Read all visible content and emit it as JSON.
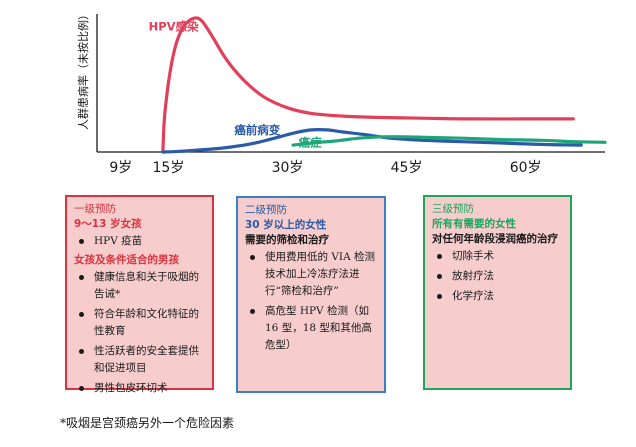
{
  "chart_data": {
    "type": "line",
    "ylabel": "人群患病率（未按比例）",
    "x_ticks": [
      {
        "label": "9岁",
        "value": 9
      },
      {
        "label": "15岁",
        "value": 15
      },
      {
        "label": "30岁",
        "value": 30
      },
      {
        "label": "45岁",
        "value": 45
      },
      {
        "label": "60岁",
        "value": 60
      }
    ],
    "xlim": [
      6,
      70
    ],
    "ylim": [
      0,
      100
    ],
    "series": [
      {
        "name": "HPV感染",
        "color": "#e0405a",
        "label_at": [
          12.5,
          88
        ],
        "points": [
          [
            14.3,
            0
          ],
          [
            14.5,
            25
          ],
          [
            15,
            50
          ],
          [
            15.6,
            70
          ],
          [
            16.3,
            84
          ],
          [
            17.2,
            93
          ],
          [
            18.3,
            97
          ],
          [
            19.2,
            95
          ],
          [
            20.5,
            84
          ],
          [
            22.3,
            67
          ],
          [
            24.5,
            52
          ],
          [
            27,
            40
          ],
          [
            30,
            32
          ],
          [
            33,
            28
          ],
          [
            37,
            26
          ],
          [
            42,
            25
          ],
          [
            47,
            24.5
          ],
          [
            53,
            24
          ],
          [
            60,
            24
          ],
          [
            66,
            24
          ]
        ]
      },
      {
        "name": "癌前病变",
        "color": "#2b5aa6",
        "label_at": [
          23.3,
          13
        ],
        "points": [
          [
            14.3,
            0
          ],
          [
            16.5,
            0.5
          ],
          [
            19,
            1.5
          ],
          [
            22,
            3
          ],
          [
            25,
            5.5
          ],
          [
            27,
            8
          ],
          [
            29,
            11
          ],
          [
            31,
            14
          ],
          [
            33,
            16
          ],
          [
            35,
            16
          ],
          [
            37,
            14.5
          ],
          [
            40,
            12.5
          ],
          [
            43,
            10
          ],
          [
            47,
            8.5
          ],
          [
            52,
            7.5
          ],
          [
            57,
            6.5
          ],
          [
            62,
            5.5
          ],
          [
            67,
            5
          ]
        ]
      },
      {
        "name": "癌症",
        "color": "#1ea57a",
        "label_at": [
          31.4,
          4
        ],
        "points": [
          [
            30.7,
            5
          ],
          [
            33,
            6.5
          ],
          [
            36,
            8
          ],
          [
            39,
            10
          ],
          [
            42,
            11
          ],
          [
            45,
            11
          ],
          [
            48,
            10.5
          ],
          [
            52,
            10
          ],
          [
            57,
            9
          ],
          [
            62,
            8.5
          ],
          [
            66,
            7.5
          ],
          [
            70,
            7
          ]
        ]
      }
    ]
  },
  "boxes": [
    {
      "title": "一级预防",
      "sub1": "9～13 岁女孩",
      "items1": [
        "HPV 疫苗"
      ],
      "sub2": "女孩及条件适合的男孩",
      "items2": [
        "健康信息和关于吸烟的告诫*",
        "符合年龄和文化特征的性教育",
        "性活跃者的安全套提供和促进项目",
        "男性包皮环切术"
      ],
      "color": "#d8343f"
    },
    {
      "title": "二级预防",
      "sub1": "30 岁以上的女性",
      "sub2": "需要的筛检和治疗",
      "items2": [
        "使用费用低的 VIA 检测技术加上冷冻疗法进行“筛检和治疗”",
        "高危型 HPV 检测（如 16 型，18 型和其他高危型）"
      ],
      "color": "#3a7fc6"
    },
    {
      "title": "三级预防",
      "sub1": "所有有需要的女性",
      "sub2": "对任何年龄段浸润癌的治疗",
      "items2": [
        "切除手术",
        "放射疗法",
        "化学疗法"
      ],
      "color": "#1ea55e"
    }
  ],
  "footnote": "*吸烟是宫颈癌另外一个危险因素"
}
